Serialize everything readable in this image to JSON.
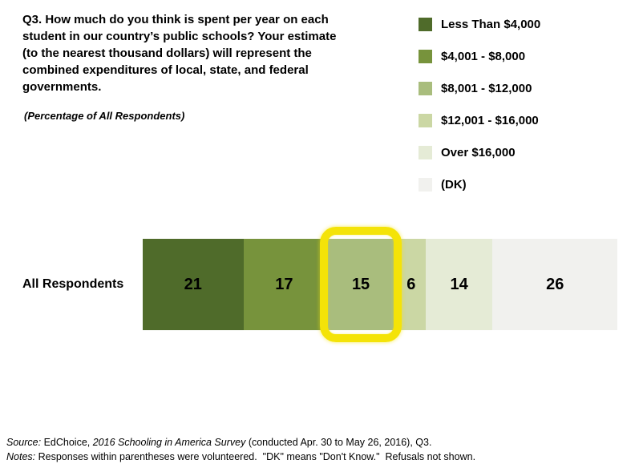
{
  "question": "Q3.  How much do you think is spent per year on each student in our country’s public schools? Your estimate (to the nearest thousand dollars) will represent the combined expenditures of local, state, and federal governments.",
  "subtitle": "(Percentage of All Respondents)",
  "row_label": "All Respondents",
  "chart_data": {
    "type": "bar",
    "orientation": "horizontal-stacked",
    "categories": [
      "All Respondents"
    ],
    "series": [
      {
        "name": "Less Than $4,000",
        "values": [
          21
        ],
        "color": "#4f6b2a"
      },
      {
        "name": "$4,001 - $8,000",
        "values": [
          17
        ],
        "color": "#77933c"
      },
      {
        "name": "$8,001 - $12,000",
        "values": [
          15
        ],
        "color": "#a9bd7d"
      },
      {
        "name": "$12,001 - $16,000",
        "values": [
          6
        ],
        "color": "#cbd7a4"
      },
      {
        "name": "Over $16,000",
        "values": [
          14
        ],
        "color": "#e5ebd6"
      },
      {
        "name": "(DK)",
        "values": [
          26
        ],
        "color": "#f1f1ee"
      }
    ],
    "value_labels": true,
    "highlight_series_index": 2,
    "highlight_color": "#f4e308",
    "legend_position": "top-right",
    "xlim": [
      0,
      99
    ]
  },
  "source": {
    "label": "Source:",
    "part1": " EdChoice, ",
    "italic": "2016 Schooling in America Survey",
    "part2": " (conducted Apr. 30 to May 26, 2016), Q3."
  },
  "notes": {
    "label": "Notes:",
    "text": " Responses within parentheses were volunteered.  \"DK\" means \"Don't Know.\"  Refusals not shown."
  }
}
